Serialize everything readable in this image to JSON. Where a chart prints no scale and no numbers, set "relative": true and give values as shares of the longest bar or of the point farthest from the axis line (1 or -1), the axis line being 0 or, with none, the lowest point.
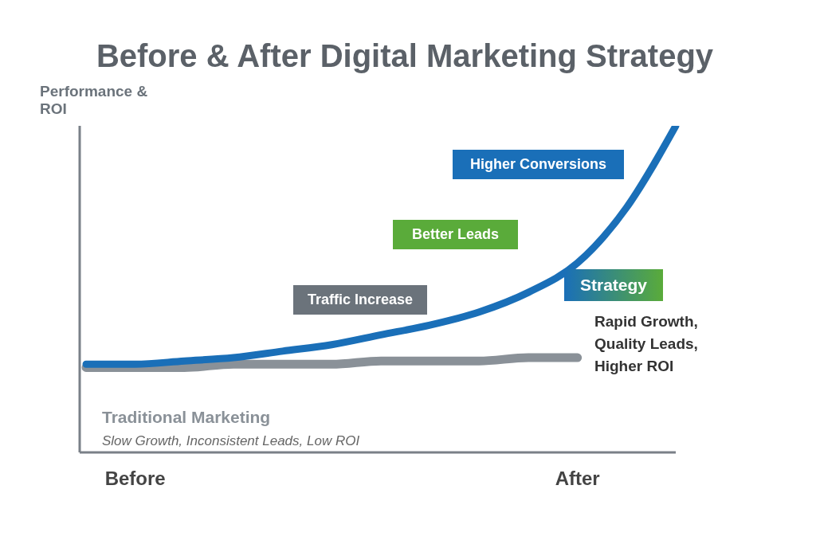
{
  "chart_data": {
    "type": "line",
    "title": "Before & After Digital Marketing Strategy",
    "ylabel": "Performance & ROI",
    "relative": true,
    "categories": [
      null,
      "Before",
      null,
      null,
      null,
      null,
      null,
      null,
      null,
      null,
      "After",
      null,
      null
    ],
    "series": [
      {
        "name": "Traditional Marketing",
        "color": "#8a9198",
        "values": [
          0.26,
          0.26,
          0.26,
          0.27,
          0.27,
          0.27,
          0.28,
          0.28,
          0.28,
          0.29,
          0.29,
          null,
          null
        ]
      },
      {
        "name": "Strategy",
        "color": "#1a6fb8",
        "values": [
          0.27,
          0.27,
          0.28,
          0.29,
          0.31,
          0.33,
          0.36,
          0.39,
          0.43,
          0.49,
          0.58,
          0.75,
          1
        ]
      }
    ],
    "annotations": [
      "Traffic Increase",
      "Better Leads",
      "Higher Conversions",
      "Rapid Growth, Quality Leads, Higher ROI",
      "Slow Growth, Inconsistent Leads, Low ROI"
    ],
    "grid": false,
    "legend": false
  }
}
